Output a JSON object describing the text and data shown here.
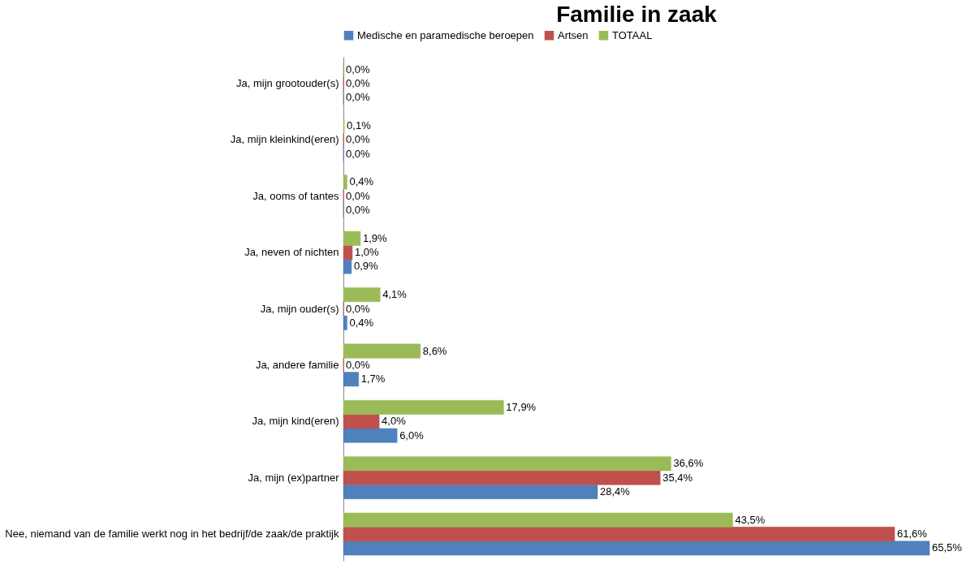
{
  "chart_data": {
    "type": "bar",
    "orientation": "horizontal",
    "title": "Familie in zaak",
    "legend": "top",
    "categories": [
      "Ja, mijn grootouder(s)",
      "Ja, mijn kleinkind(eren)",
      "Ja, ooms of tantes",
      "Ja, neven of nichten",
      "Ja, mijn ouder(s)",
      "Ja, andere familie",
      "Ja, mijn kind(eren)",
      "Ja, mijn (ex)partner",
      "Nee, niemand van de familie werkt nog in het bedrijf/de zaak/de praktijk"
    ],
    "series": [
      {
        "name": "Medische en paramedische beroepen",
        "color": "#4f81bd",
        "values": [
          0.0,
          0.0,
          0.0,
          0.9,
          0.4,
          1.7,
          6.0,
          28.4,
          65.5
        ],
        "value_labels": [
          "0,0%",
          "0,0%",
          "0,0%",
          "0,9%",
          "0,4%",
          "1,7%",
          "6,0%",
          "28,4%",
          "65,5%"
        ]
      },
      {
        "name": "Artsen",
        "color": "#c0504d",
        "values": [
          0.0,
          0.0,
          0.0,
          1.0,
          0.0,
          0.0,
          4.0,
          35.4,
          61.6
        ],
        "value_labels": [
          "0,0%",
          "0,0%",
          "0,0%",
          "1,0%",
          "0,0%",
          "0,0%",
          "4,0%",
          "35,4%",
          "61,6%"
        ]
      },
      {
        "name": "TOTAAL",
        "color": "#9bbb59",
        "values": [
          0.0,
          0.1,
          0.4,
          1.9,
          4.1,
          8.6,
          17.9,
          36.6,
          43.5
        ],
        "value_labels": [
          "0,0%",
          "0,1%",
          "0,4%",
          "1,9%",
          "4,1%",
          "8,6%",
          "17,9%",
          "36,6%",
          "43,5%"
        ]
      }
    ]
  }
}
